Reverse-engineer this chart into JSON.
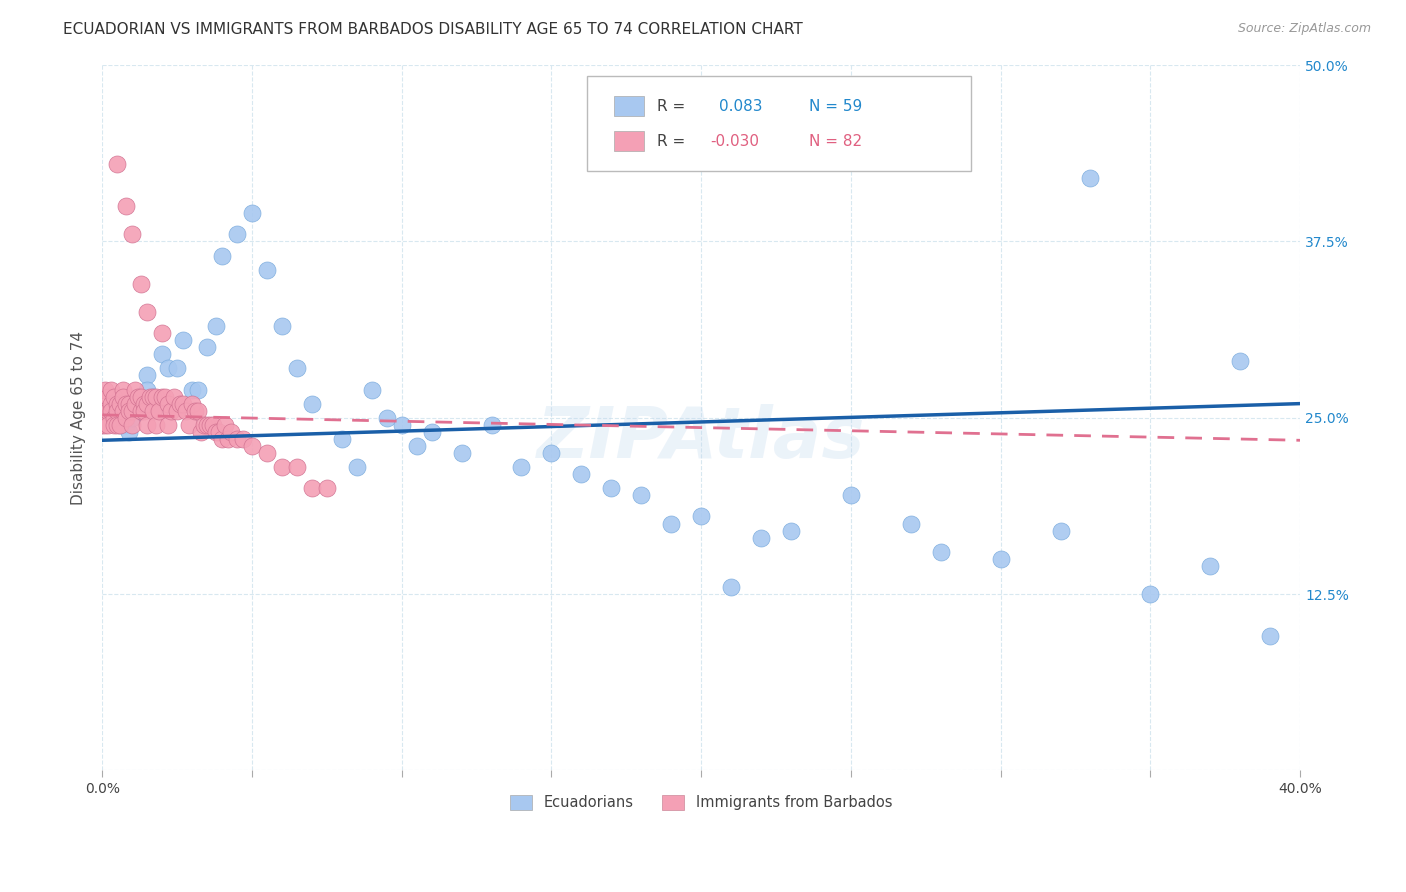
{
  "title": "ECUADORIAN VS IMMIGRANTS FROM BARBADOS DISABILITY AGE 65 TO 74 CORRELATION CHART",
  "source": "Source: ZipAtlas.com",
  "ylabel": "Disability Age 65 to 74",
  "xlim": [
    0.0,
    0.4
  ],
  "ylim": [
    0.0,
    0.5
  ],
  "xticks": [
    0.0,
    0.05,
    0.1,
    0.15,
    0.2,
    0.25,
    0.3,
    0.35,
    0.4
  ],
  "yticks": [
    0.0,
    0.125,
    0.25,
    0.375,
    0.5
  ],
  "ytick_labels": [
    "",
    "12.5%",
    "25.0%",
    "37.5%",
    "50.0%"
  ],
  "background_color": "#ffffff",
  "grid_color": "#d8e8f0",
  "blue_color": "#a8c8f0",
  "pink_color": "#f4a0b5",
  "line_blue": "#1a5fa8",
  "line_pink": "#e07090",
  "legend_R_blue": "0.083",
  "legend_N_blue": "59",
  "legend_R_pink": "-0.030",
  "legend_N_pink": "82",
  "legend_label_blue": "Ecuadorians",
  "legend_label_pink": "Immigrants from Barbados",
  "blue_intercept": 0.234,
  "blue_slope": 0.065,
  "pink_intercept": 0.252,
  "pink_slope": -0.045,
  "blue_x": [
    0.003,
    0.004,
    0.005,
    0.006,
    0.007,
    0.008,
    0.008,
    0.009,
    0.01,
    0.012,
    0.013,
    0.015,
    0.015,
    0.017,
    0.018,
    0.02,
    0.022,
    0.025,
    0.027,
    0.03,
    0.032,
    0.035,
    0.038,
    0.04,
    0.045,
    0.05,
    0.055,
    0.06,
    0.065,
    0.07,
    0.08,
    0.085,
    0.09,
    0.095,
    0.1,
    0.105,
    0.11,
    0.12,
    0.13,
    0.14,
    0.15,
    0.16,
    0.17,
    0.18,
    0.19,
    0.2,
    0.21,
    0.22,
    0.23,
    0.25,
    0.27,
    0.28,
    0.3,
    0.32,
    0.33,
    0.35,
    0.37,
    0.38,
    0.39
  ],
  "blue_y": [
    0.255,
    0.26,
    0.25,
    0.245,
    0.26,
    0.255,
    0.245,
    0.24,
    0.25,
    0.265,
    0.255,
    0.28,
    0.27,
    0.265,
    0.26,
    0.295,
    0.285,
    0.285,
    0.305,
    0.27,
    0.27,
    0.3,
    0.315,
    0.365,
    0.38,
    0.395,
    0.355,
    0.315,
    0.285,
    0.26,
    0.235,
    0.215,
    0.27,
    0.25,
    0.245,
    0.23,
    0.24,
    0.225,
    0.245,
    0.215,
    0.225,
    0.21,
    0.2,
    0.195,
    0.175,
    0.18,
    0.13,
    0.165,
    0.17,
    0.195,
    0.175,
    0.155,
    0.15,
    0.17,
    0.42,
    0.125,
    0.145,
    0.29,
    0.095
  ],
  "pink_x": [
    0.0,
    0.0,
    0.001,
    0.001,
    0.001,
    0.002,
    0.002,
    0.002,
    0.003,
    0.003,
    0.003,
    0.004,
    0.004,
    0.004,
    0.005,
    0.005,
    0.005,
    0.006,
    0.006,
    0.007,
    0.007,
    0.007,
    0.008,
    0.008,
    0.009,
    0.009,
    0.01,
    0.01,
    0.011,
    0.011,
    0.012,
    0.013,
    0.013,
    0.014,
    0.014,
    0.015,
    0.015,
    0.016,
    0.017,
    0.017,
    0.018,
    0.018,
    0.019,
    0.02,
    0.021,
    0.022,
    0.022,
    0.023,
    0.024,
    0.025,
    0.026,
    0.027,
    0.028,
    0.029,
    0.03,
    0.031,
    0.032,
    0.033,
    0.034,
    0.035,
    0.036,
    0.037,
    0.038,
    0.039,
    0.04,
    0.041,
    0.042,
    0.043,
    0.045,
    0.047,
    0.05,
    0.055,
    0.06,
    0.065,
    0.07,
    0.075,
    0.005,
    0.008,
    0.01,
    0.013,
    0.015,
    0.02
  ],
  "pink_y": [
    0.255,
    0.245,
    0.27,
    0.255,
    0.245,
    0.265,
    0.255,
    0.245,
    0.26,
    0.27,
    0.255,
    0.265,
    0.25,
    0.245,
    0.26,
    0.255,
    0.245,
    0.26,
    0.245,
    0.27,
    0.265,
    0.255,
    0.26,
    0.25,
    0.26,
    0.255,
    0.255,
    0.245,
    0.27,
    0.26,
    0.265,
    0.265,
    0.255,
    0.26,
    0.255,
    0.26,
    0.245,
    0.265,
    0.265,
    0.255,
    0.265,
    0.245,
    0.255,
    0.265,
    0.265,
    0.26,
    0.245,
    0.255,
    0.265,
    0.255,
    0.26,
    0.26,
    0.255,
    0.245,
    0.26,
    0.255,
    0.255,
    0.24,
    0.245,
    0.245,
    0.245,
    0.245,
    0.24,
    0.24,
    0.235,
    0.245,
    0.235,
    0.24,
    0.235,
    0.235,
    0.23,
    0.225,
    0.215,
    0.215,
    0.2,
    0.2,
    0.43,
    0.4,
    0.38,
    0.345,
    0.325,
    0.31
  ]
}
